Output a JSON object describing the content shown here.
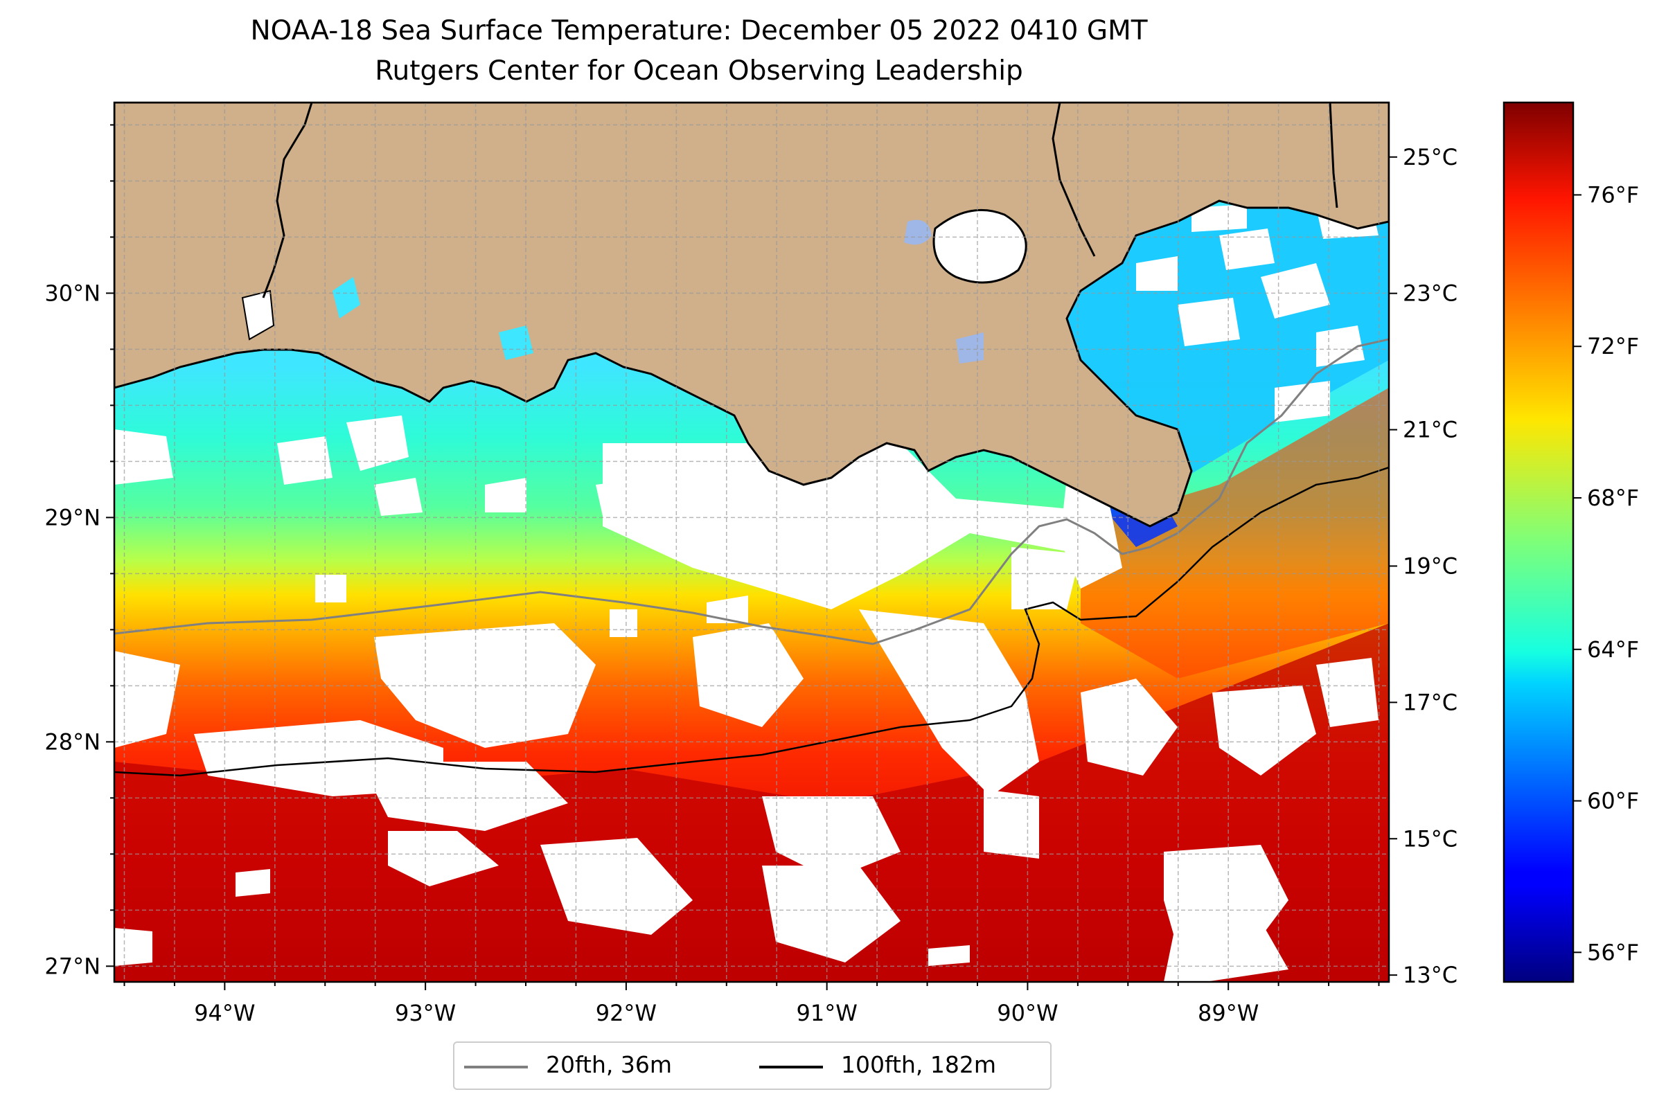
{
  "title": {
    "line1": "NOAA-18 Sea Surface Temperature: December 05 2022 0410 GMT",
    "line2": "Rutgers Center for Ocean Observing Leadership"
  },
  "map": {
    "type": "heatmap",
    "variable": "sea surface temperature",
    "lon_range": [
      -94.55,
      -88.2
    ],
    "lat_range": [
      26.93,
      30.85
    ],
    "x_ticks": [
      "94°W",
      "93°W",
      "92°W",
      "91°W",
      "90°W",
      "89°W"
    ],
    "x_tick_values": [
      -94,
      -93,
      -92,
      -91,
      -90,
      -89
    ],
    "y_ticks": [
      "27°N",
      "28°N",
      "29°N",
      "30°N"
    ],
    "y_tick_values": [
      27,
      28,
      29,
      30
    ],
    "grid": true,
    "colors": {
      "land": "#cfb08a",
      "no_data": "#ffffff",
      "coastline": "#000000"
    },
    "contours": [
      {
        "label": "20fth, 36m",
        "color": "#808080"
      },
      {
        "label": "100fth, 182m",
        "color": "#000000"
      }
    ]
  },
  "colorbar": {
    "colormap": "jet",
    "celsius_ticks": [
      "25°C",
      "23°C",
      "21°C",
      "19°C",
      "17°C",
      "15°C",
      "13°C"
    ],
    "celsius_values": [
      25,
      23,
      21,
      19,
      17,
      15,
      13
    ],
    "fahrenheit_ticks": [
      "76°F",
      "72°F",
      "68°F",
      "64°F",
      "60°F",
      "56°F"
    ],
    "fahrenheit_values": [
      76,
      72,
      68,
      64,
      60,
      56
    ],
    "range_c": [
      12.9,
      25.8
    ]
  },
  "legend": {
    "items": [
      {
        "label": "20fth, 36m",
        "color": "#808080"
      },
      {
        "label": "100fth, 182m",
        "color": "#000000"
      }
    ],
    "placement": "bottom-center"
  }
}
